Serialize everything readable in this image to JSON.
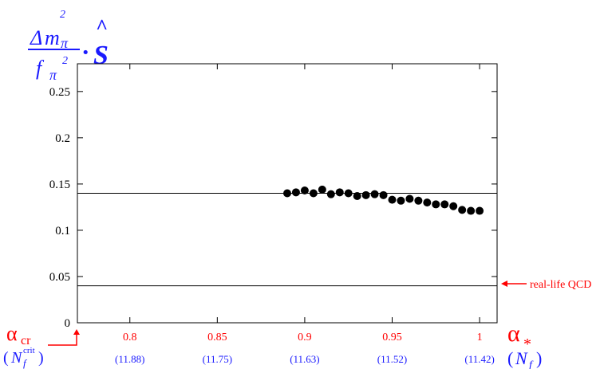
{
  "colors": {
    "axis": "#000000",
    "points": "#000000",
    "x_ticks": "#ff0000",
    "nf_labels": "#1a1aff",
    "ylabel": "#1a1aff",
    "annotation": "#ff0000"
  },
  "chart_data": {
    "type": "scatter",
    "title": "",
    "ylabel": "Δm_π² / f_π² · Ŝ",
    "ylabel_parts": {
      "delta": "Δ",
      "m": "m",
      "pi": "π",
      "sq": "2",
      "f": "f",
      "dot": "·",
      "hat": "^",
      "S": "S"
    },
    "xlim": [
      0.77,
      1.01
    ],
    "ylim": [
      0,
      0.28
    ],
    "x_ticks": [
      "0.8",
      "0.85",
      "0.9",
      "0.95",
      "1"
    ],
    "x_tick_values": [
      0.8,
      0.85,
      0.9,
      0.95,
      1.0
    ],
    "y_ticks": [
      "0",
      "0.05",
      "0.1",
      "0.15",
      "0.2",
      "0.25"
    ],
    "y_tick_values": [
      0,
      0.05,
      0.1,
      0.15,
      0.2,
      0.25
    ],
    "nf_labels": [
      "(11.88)",
      "(11.75)",
      "(11.63)",
      "(11.52)",
      "(11.42)"
    ],
    "x_axis_symbol": "α",
    "x_axis_symbol_sub": "*",
    "x_axis_secondary_label": "N",
    "x_axis_secondary_sub": "f",
    "alpha_cr_label": "α",
    "alpha_cr_sub": "cr",
    "nf_crit_label": "N",
    "nf_crit_sub": "f",
    "nf_crit_sup": "crit",
    "reference_lines": [
      {
        "y": 0.14,
        "label": ""
      },
      {
        "y": 0.04,
        "label": "real-life QCD"
      }
    ],
    "points": [
      {
        "x": 0.89,
        "y": 0.14
      },
      {
        "x": 0.895,
        "y": 0.141
      },
      {
        "x": 0.9,
        "y": 0.143
      },
      {
        "x": 0.905,
        "y": 0.14
      },
      {
        "x": 0.91,
        "y": 0.144
      },
      {
        "x": 0.915,
        "y": 0.139
      },
      {
        "x": 0.92,
        "y": 0.141
      },
      {
        "x": 0.925,
        "y": 0.14
      },
      {
        "x": 0.93,
        "y": 0.137
      },
      {
        "x": 0.935,
        "y": 0.138
      },
      {
        "x": 0.94,
        "y": 0.139
      },
      {
        "x": 0.945,
        "y": 0.138
      },
      {
        "x": 0.95,
        "y": 0.133
      },
      {
        "x": 0.955,
        "y": 0.132
      },
      {
        "x": 0.96,
        "y": 0.134
      },
      {
        "x": 0.965,
        "y": 0.132
      },
      {
        "x": 0.97,
        "y": 0.13
      },
      {
        "x": 0.975,
        "y": 0.128
      },
      {
        "x": 0.98,
        "y": 0.128
      },
      {
        "x": 0.985,
        "y": 0.126
      },
      {
        "x": 0.99,
        "y": 0.122
      },
      {
        "x": 0.995,
        "y": 0.121
      },
      {
        "x": 1.0,
        "y": 0.121
      }
    ],
    "grid": false,
    "legend": "none"
  }
}
